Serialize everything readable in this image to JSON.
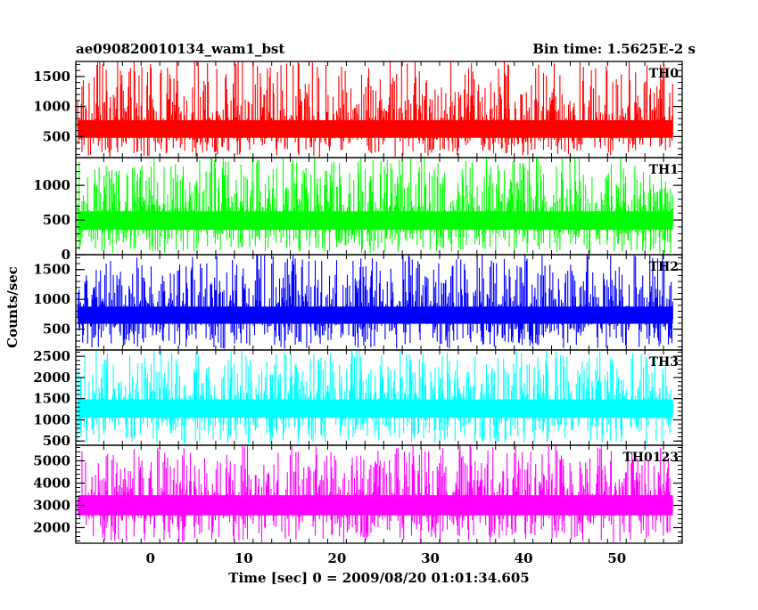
{
  "chart_data": {
    "type": "line",
    "title": "ae090820010134_wam1_bst",
    "subtitle": "Bin time: 1.5625E-2 s",
    "xlabel": "Time [sec] 0 = 2009/08/20 01:01:34.605",
    "ylabel": "Counts/sec",
    "xlim": [
      -8,
      57
    ],
    "x_range_data": [
      -7.8,
      56.0
    ],
    "x_ticks": [
      0,
      10,
      20,
      30,
      40,
      50
    ],
    "grid": false,
    "panels": [
      {
        "name": "TH0",
        "color": "#ff0000",
        "ylim": [
          150,
          1750
        ],
        "yticks": [
          500,
          1000,
          1500
        ],
        "baseline": 480,
        "mean": 640,
        "min": 160,
        "max": 1750
      },
      {
        "name": "TH1",
        "color": "#00ff00",
        "ylim": [
          0,
          1400
        ],
        "yticks": [
          0,
          500,
          1000
        ],
        "baseline": 360,
        "mean": 520,
        "min": 20,
        "max": 1400
      },
      {
        "name": "TH2",
        "color": "#0000ff",
        "ylim": [
          150,
          1750
        ],
        "yticks": [
          500,
          1000,
          1500
        ],
        "baseline": 590,
        "mean": 760,
        "min": 170,
        "max": 1750
      },
      {
        "name": "TH3",
        "color": "#00ffff",
        "ylim": [
          400,
          2650
        ],
        "yticks": [
          500,
          1000,
          1500,
          2000,
          2500
        ],
        "baseline": 1050,
        "mean": 1320,
        "min": 430,
        "max": 2650
      },
      {
        "name": "TH0123",
        "color": "#ff00ff",
        "ylim": [
          1300,
          5700
        ],
        "yticks": [
          2000,
          3000,
          4000,
          5000
        ],
        "baseline": 2550,
        "mean": 3150,
        "min": 1320,
        "max": 5700
      }
    ]
  }
}
